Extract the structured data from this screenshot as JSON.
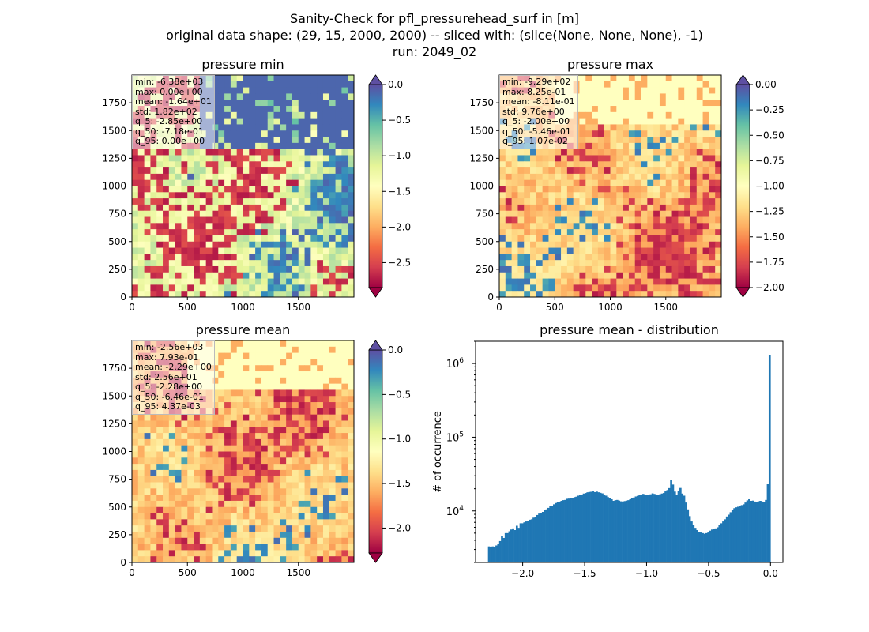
{
  "title_lines": [
    "Sanity-Check for pfl_pressurehead_surf in [m]",
    "original data shape: (29, 15, 2000, 2000) -- sliced with: (slice(None, None, None), -1)",
    "run: 2049_02"
  ],
  "colormap": {
    "name": "Spectral",
    "stops": [
      "#9e0142",
      "#d53e4f",
      "#f46d43",
      "#fdae61",
      "#fee08b",
      "#ffffbf",
      "#e6f598",
      "#abdda4",
      "#66c2a5",
      "#3288bd",
      "#5e4fa2"
    ]
  },
  "panels": [
    {
      "id": "min",
      "title": "pressure min",
      "stats": [
        "min: -6.38e+03",
        "max: 0.00e+00",
        "mean: -1.64e+01",
        "std: 1.82e+02",
        "q_5: -2.85e+00",
        "q_50: -7.18e-01",
        "q_95: 0.00e+00"
      ],
      "xticks": [
        "0",
        "500",
        "1000",
        "1500"
      ],
      "yticks": [
        "0",
        "250",
        "500",
        "750",
        "1000",
        "1250",
        "1500",
        "1750"
      ],
      "colorbar": {
        "min": -2.85,
        "max": 0.0,
        "ticks": [
          "0.0",
          "−0.5",
          "−1.0",
          "−1.5",
          "−2.0",
          "−2.5"
        ]
      }
    },
    {
      "id": "max",
      "title": "pressure max",
      "stats": [
        "min: -9.29e+02",
        "max: 8.25e-01",
        "mean: -8.11e-01",
        "std: 9.76e+00",
        "q_5: -2.00e+00",
        "q_50: -5.46e-01",
        "q_95: 1.07e-02"
      ],
      "xticks": [
        "0",
        "500",
        "1000",
        "1500"
      ],
      "yticks": [
        "0",
        "250",
        "500",
        "750",
        "1000",
        "1250",
        "1500",
        "1750"
      ],
      "colorbar": {
        "min": -2.0,
        "max": 0.0,
        "ticks": [
          "0.00",
          "−0.25",
          "−0.50",
          "−0.75",
          "−1.00",
          "−1.25",
          "−1.50",
          "−1.75",
          "−2.00"
        ]
      }
    },
    {
      "id": "mean",
      "title": "pressure mean",
      "stats": [
        "min: -2.56e+03",
        "max: 7.93e-01",
        "mean: -2.29e+00",
        "std: 2.56e+01",
        "q_5: -2.28e+00",
        "q_50: -6.46e-01",
        "q_95: 4.37e-03"
      ],
      "xticks": [
        "0",
        "500",
        "1000",
        "1500"
      ],
      "yticks": [
        "0",
        "250",
        "500",
        "750",
        "1000",
        "1250",
        "1500",
        "1750"
      ],
      "colorbar": {
        "min": -2.28,
        "max": 0.0,
        "ticks": [
          "0.0",
          "−0.5",
          "−1.0",
          "−1.5",
          "−2.0"
        ]
      }
    }
  ],
  "chart_data": {
    "type": "bar",
    "title": "pressure mean - distribution",
    "xlabel": "",
    "ylabel": "# of occurrence",
    "yscale": "log",
    "xlim": [
      -2.38,
      0.1
    ],
    "ylim": [
      2000,
      2000000
    ],
    "xticks": [
      -2.0,
      -1.5,
      -1.0,
      -0.5,
      0.0
    ],
    "xtick_labels": [
      "−2.0",
      "−1.5",
      "−1.0",
      "−0.5",
      "0.0"
    ],
    "yticks": [
      10000,
      100000,
      1000000
    ],
    "ytick_labels": [
      "10^4",
      "10^5",
      "10^6"
    ],
    "bar_color": "#1f77b4",
    "bin_range": [
      -2.28,
      0.0
    ],
    "counts": [
      3300,
      3200,
      3300,
      3200,
      3400,
      3600,
      3900,
      4600,
      4300,
      5000,
      5000,
      5300,
      5600,
      5800,
      5500,
      6300,
      5900,
      6800,
      6800,
      7000,
      7200,
      7300,
      7600,
      7700,
      8100,
      8300,
      8800,
      9200,
      9300,
      9700,
      10200,
      10500,
      11000,
      11800,
      11600,
      12300,
      12800,
      13100,
      13400,
      13700,
      14000,
      14100,
      14600,
      14700,
      15000,
      14800,
      15400,
      15600,
      16100,
      16300,
      16700,
      17200,
      17500,
      17900,
      18100,
      18200,
      18400,
      18000,
      18300,
      17900,
      17600,
      17300,
      16600,
      16100,
      15400,
      15000,
      14400,
      13700,
      14000,
      14100,
      13800,
      13500,
      13400,
      13600,
      13800,
      14000,
      14400,
      14800,
      15200,
      15700,
      16000,
      16400,
      16700,
      17000,
      16600,
      16300,
      16400,
      16800,
      17300,
      17000,
      16700,
      16500,
      16800,
      17200,
      17500,
      18400,
      19200,
      20400,
      26500,
      22800,
      18300,
      16700,
      18500,
      20500,
      17200,
      16100,
      13000,
      10500,
      8500,
      7200,
      6400,
      5900,
      5500,
      5200,
      5100,
      5000,
      4900,
      5000,
      5100,
      5400,
      5600,
      5700,
      5800,
      6000,
      6400,
      6800,
      7200,
      7700,
      8400,
      8900,
      9600,
      10200,
      10900,
      11200,
      11400,
      11700,
      12000,
      12300,
      13000,
      13900,
      14400,
      13700,
      13800,
      13400,
      13200,
      13500,
      13700,
      13400,
      13200,
      14100,
      23000,
      1300000
    ]
  }
}
